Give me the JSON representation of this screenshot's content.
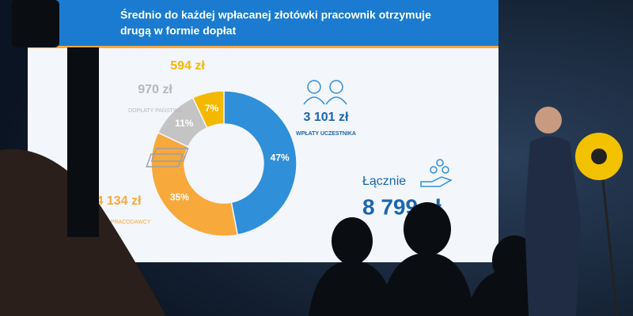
{
  "slide": {
    "title_lines": [
      "Średnio do każdej wpłacanej złotówki pracownik otrzymuje",
      "drugą w formie dopłat"
    ],
    "callouts": [
      {
        "amount": "594 zł"
      },
      {
        "amount": "970 zł",
        "caption": "DOPŁATY PAŃSTWA"
      },
      {
        "amount": "3 101 zł",
        "caption": "WPŁATY UCZESTNIKA"
      },
      {
        "amount": "4 134 zł",
        "caption": "WPŁATY PRACODAWCY"
      }
    ],
    "total_label": "Łącznie",
    "total_amount": "8 799 zł"
  },
  "chart_data": {
    "type": "donut",
    "values": [
      47,
      35,
      11,
      7
    ],
    "value_labels": [
      "47%",
      "35%",
      "11%",
      "7%"
    ],
    "colors": [
      "#2f8fd8",
      "#f8a93c",
      "#c4c4c4",
      "#f5b800"
    ]
  }
}
